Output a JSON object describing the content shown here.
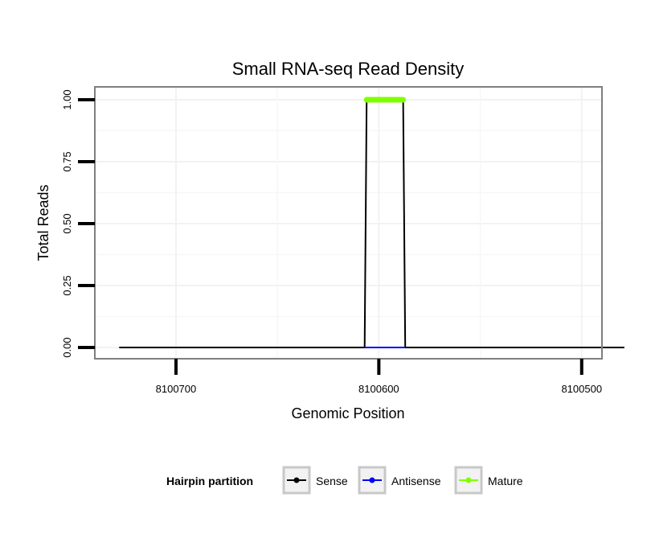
{
  "chart_data": {
    "type": "line",
    "title": "Small RNA-seq Read Density",
    "xlabel": "Genomic Position",
    "ylabel": "Total Reads",
    "xlim": [
      8100740,
      8100490
    ],
    "ylim": [
      0,
      1.0
    ],
    "x_ticks": [
      8100700,
      8100600,
      8100500
    ],
    "x_tick_labels": [
      "8100700",
      "8100600",
      "8100500"
    ],
    "y_ticks": [
      0,
      0.25,
      0.5,
      0.75,
      1.0
    ],
    "y_tick_labels": [
      "0.00",
      "0.25",
      "0.50",
      "0.75",
      "1.00"
    ],
    "grid": true,
    "series": [
      {
        "name": "Sense",
        "color": "#000000",
        "x": [
          8100728,
          8100607,
          8100606,
          8100588,
          8100587,
          8100479
        ],
        "y": [
          0,
          0,
          1,
          1,
          0,
          0
        ]
      },
      {
        "name": "Antisense",
        "color": "#0000ff",
        "x": [
          8100607,
          8100587
        ],
        "y": [
          0,
          0
        ]
      },
      {
        "name": "Mature",
        "color": "#80ff00",
        "x": [
          8100606,
          8100588
        ],
        "y": [
          1,
          1
        ]
      }
    ],
    "legend": {
      "title": "Hairpin partition",
      "position": "bottom",
      "entries": [
        "Sense",
        "Antisense",
        "Mature"
      ]
    }
  }
}
